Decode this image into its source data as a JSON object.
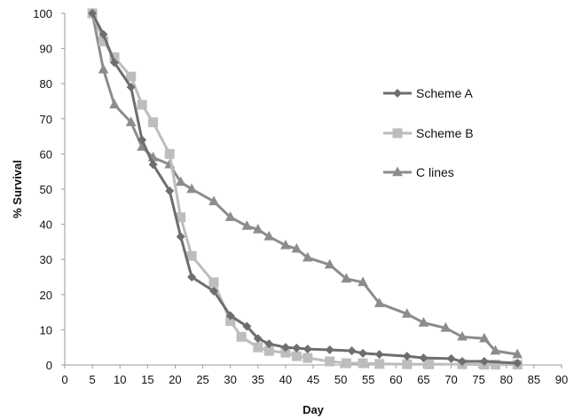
{
  "chart_data": {
    "type": "line",
    "xlabel": "Day",
    "ylabel": "% Survival",
    "xlim": [
      0,
      90
    ],
    "ylim": [
      0,
      100
    ],
    "xticks": [
      0,
      5,
      10,
      15,
      20,
      25,
      30,
      35,
      40,
      45,
      50,
      55,
      60,
      65,
      70,
      75,
      80,
      85,
      90
    ],
    "yticks": [
      0,
      10,
      20,
      30,
      40,
      50,
      60,
      70,
      80,
      90,
      100
    ],
    "grid": false,
    "legend_position": "right",
    "series": [
      {
        "name": "Scheme A",
        "marker": "diamond",
        "color": "#6e6e6e",
        "x": [
          5,
          7,
          9,
          12,
          14,
          16,
          19,
          21,
          23,
          27,
          30,
          33,
          35,
          37,
          40,
          42,
          44,
          48,
          52,
          54,
          57,
          62,
          65,
          70,
          72,
          76,
          82
        ],
        "y": [
          100,
          94,
          86,
          79,
          64,
          57,
          49.5,
          36.5,
          25,
          21,
          14,
          11,
          7.5,
          6,
          5,
          4.8,
          4.5,
          4.3,
          4,
          3.3,
          3,
          2.5,
          2,
          1.8,
          1,
          1,
          0.5
        ]
      },
      {
        "name": "Scheme B",
        "marker": "square",
        "color": "#bdbdbd",
        "x": [
          5,
          7,
          9,
          12,
          14,
          16,
          19,
          21,
          23,
          27,
          30,
          32,
          35,
          37,
          40,
          42,
          44,
          48,
          51,
          54,
          57,
          62,
          66,
          72,
          76,
          78,
          82
        ],
        "y": [
          100,
          92,
          87.5,
          82,
          74,
          69,
          60,
          42,
          31,
          23.5,
          12.5,
          8,
          5,
          4,
          3.5,
          2.5,
          2,
          1,
          0.5,
          0.5,
          0.3,
          0.2,
          0.2,
          0.2,
          0.1,
          0.1,
          0.1
        ]
      },
      {
        "name": "C lines",
        "marker": "triangle",
        "color": "#8c8c8c",
        "x": [
          5,
          7,
          9,
          12,
          14,
          16,
          19,
          21,
          23,
          27,
          30,
          33,
          35,
          37,
          40,
          42,
          44,
          48,
          51,
          54,
          57,
          62,
          65,
          69,
          72,
          76,
          78,
          82
        ],
        "y": [
          100,
          84,
          74,
          69,
          62,
          59,
          57,
          52,
          50,
          46.5,
          42,
          39.5,
          38.5,
          36.5,
          34,
          33,
          30.5,
          28.5,
          24.5,
          23.5,
          17.5,
          14.5,
          12,
          10.5,
          8,
          7.5,
          4,
          3
        ]
      }
    ]
  }
}
